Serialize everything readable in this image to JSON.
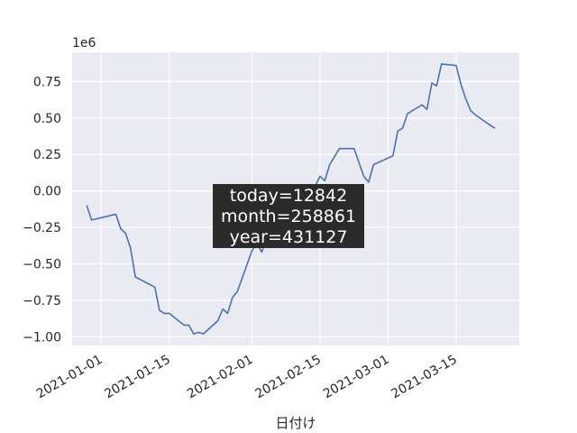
{
  "chart_data": {
    "type": "line",
    "xlabel": "日付け",
    "ylabel": "",
    "y_offset_label": "1e6",
    "ylim": [
      -1.06,
      0.95
    ],
    "xlim": [
      "2020-12-26",
      "2021-03-28"
    ],
    "grid": true,
    "x_ticks": [
      "2021-01-01",
      "2021-01-15",
      "2021-02-01",
      "2021-02-15",
      "2021-03-01",
      "2021-03-15"
    ],
    "y_ticks": [
      "0.75",
      "0.50",
      "0.25",
      "0.00",
      "−0.25",
      "−0.50",
      "−0.75",
      "−1.00"
    ],
    "y_tick_values": [
      0.75,
      0.5,
      0.25,
      0.0,
      -0.25,
      -0.5,
      -0.75,
      -1.0
    ],
    "series": [
      {
        "color": "#4c72b0",
        "x": [
          "2020-12-29",
          "2020-12-30",
          "2021-01-04",
          "2021-01-05",
          "2021-01-06",
          "2021-01-07",
          "2021-01-08",
          "2021-01-12",
          "2021-01-13",
          "2021-01-14",
          "2021-01-15",
          "2021-01-18",
          "2021-01-19",
          "2021-01-20",
          "2021-01-21",
          "2021-01-22",
          "2021-01-25",
          "2021-01-26",
          "2021-01-27",
          "2021-01-28",
          "2021-01-29",
          "2021-02-01",
          "2021-02-02",
          "2021-02-03",
          "2021-02-04",
          "2021-02-05",
          "2021-02-08",
          "2021-02-09",
          "2021-02-10",
          "2021-02-12",
          "2021-02-15",
          "2021-02-16",
          "2021-02-17",
          "2021-02-19",
          "2021-02-22",
          "2021-02-24",
          "2021-02-25",
          "2021-02-26",
          "2021-03-02",
          "2021-03-03",
          "2021-03-04",
          "2021-03-05",
          "2021-03-08",
          "2021-03-09",
          "2021-03-10",
          "2021-03-11",
          "2021-03-12",
          "2021-03-15",
          "2021-03-16",
          "2021-03-17",
          "2021-03-18",
          "2021-03-19",
          "2021-03-22",
          "2021-03-23"
        ],
        "values": [
          -0.1,
          -0.2,
          -0.16,
          -0.26,
          -0.29,
          -0.39,
          -0.59,
          -0.66,
          -0.82,
          -0.84,
          -0.84,
          -0.92,
          -0.92,
          -0.98,
          -0.97,
          -0.98,
          -0.89,
          -0.81,
          -0.84,
          -0.73,
          -0.69,
          -0.41,
          -0.36,
          -0.42,
          -0.33,
          -0.3,
          -0.25,
          -0.27,
          -0.23,
          -0.1,
          0.1,
          0.07,
          0.18,
          0.29,
          0.29,
          0.1,
          0.06,
          0.18,
          0.24,
          0.41,
          0.43,
          0.53,
          0.59,
          0.56,
          0.74,
          0.72,
          0.87,
          0.86,
          0.73,
          0.63,
          0.55,
          0.52,
          0.45,
          0.43
        ]
      }
    ],
    "annotation": {
      "lines": [
        "today=12842",
        "month=258861",
        "year=431127"
      ]
    }
  }
}
